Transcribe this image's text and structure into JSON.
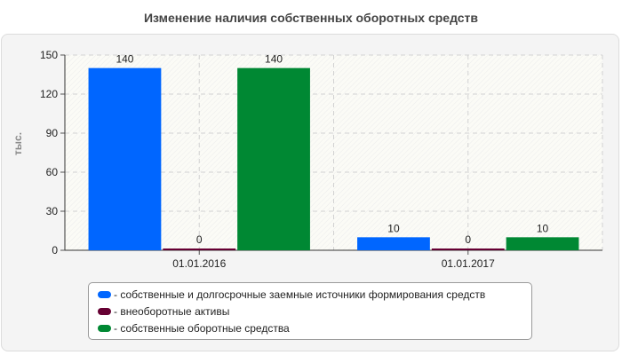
{
  "chart_data": {
    "type": "bar",
    "title": "Изменение наличия собственных оборотных средств",
    "ylabel": "тыс.",
    "xlabel": "",
    "categories": [
      "01.01.2016",
      "01.01.2017"
    ],
    "ylim": [
      0,
      150
    ],
    "yticks": [
      0,
      30,
      60,
      90,
      120,
      150
    ],
    "grid": true,
    "legend_position": "bottom",
    "series": [
      {
        "name": "- собственные и долгосрочные заемные источники формирования средств",
        "color": "#0066ff",
        "values": [
          140,
          10
        ],
        "labels": [
          "140",
          "10"
        ]
      },
      {
        "name": "- внеоборотные активы",
        "color": "#660033",
        "values": [
          0,
          0
        ],
        "labels": [
          "0",
          "0"
        ]
      },
      {
        "name": "- собственные оборотные средства",
        "color": "#008833",
        "values": [
          140,
          10
        ],
        "labels": [
          "140",
          "10"
        ]
      }
    ]
  }
}
